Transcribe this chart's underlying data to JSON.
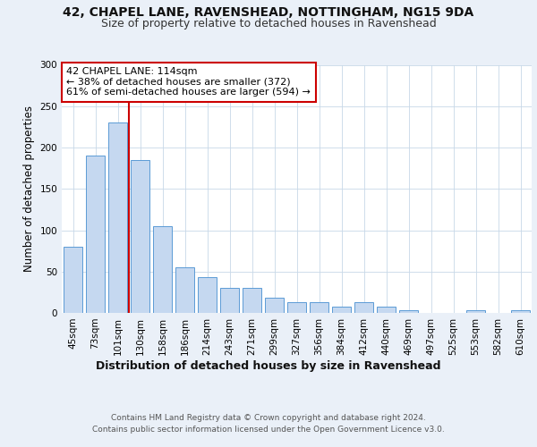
{
  "title1": "42, CHAPEL LANE, RAVENSHEAD, NOTTINGHAM, NG15 9DA",
  "title2": "Size of property relative to detached houses in Ravenshead",
  "xlabel": "Distribution of detached houses by size in Ravenshead",
  "ylabel": "Number of detached properties",
  "footer1": "Contains HM Land Registry data © Crown copyright and database right 2024.",
  "footer2": "Contains public sector information licensed under the Open Government Licence v3.0.",
  "categories": [
    "45sqm",
    "73sqm",
    "101sqm",
    "130sqm",
    "158sqm",
    "186sqm",
    "214sqm",
    "243sqm",
    "271sqm",
    "299sqm",
    "327sqm",
    "356sqm",
    "384sqm",
    "412sqm",
    "440sqm",
    "469sqm",
    "497sqm",
    "525sqm",
    "553sqm",
    "582sqm",
    "610sqm"
  ],
  "values": [
    80,
    190,
    230,
    185,
    105,
    55,
    43,
    30,
    30,
    18,
    13,
    13,
    8,
    13,
    8,
    3,
    0,
    0,
    3,
    0,
    3
  ],
  "bar_color": "#c5d8f0",
  "bar_edge_color": "#5b9bd5",
  "vline_x": 2.5,
  "vline_color": "#cc0000",
  "annotation_text": "42 CHAPEL LANE: 114sqm\n← 38% of detached houses are smaller (372)\n61% of semi-detached houses are larger (594) →",
  "annotation_box_color": "#ffffff",
  "annotation_box_edge": "#cc0000",
  "ylim": [
    0,
    300
  ],
  "yticks": [
    0,
    50,
    100,
    150,
    200,
    250,
    300
  ],
  "bg_color": "#eaf0f8",
  "plot_bg": "#ffffff",
  "title_fontsize": 10,
  "subtitle_fontsize": 9,
  "axis_label_fontsize": 8.5,
  "tick_fontsize": 7.5
}
